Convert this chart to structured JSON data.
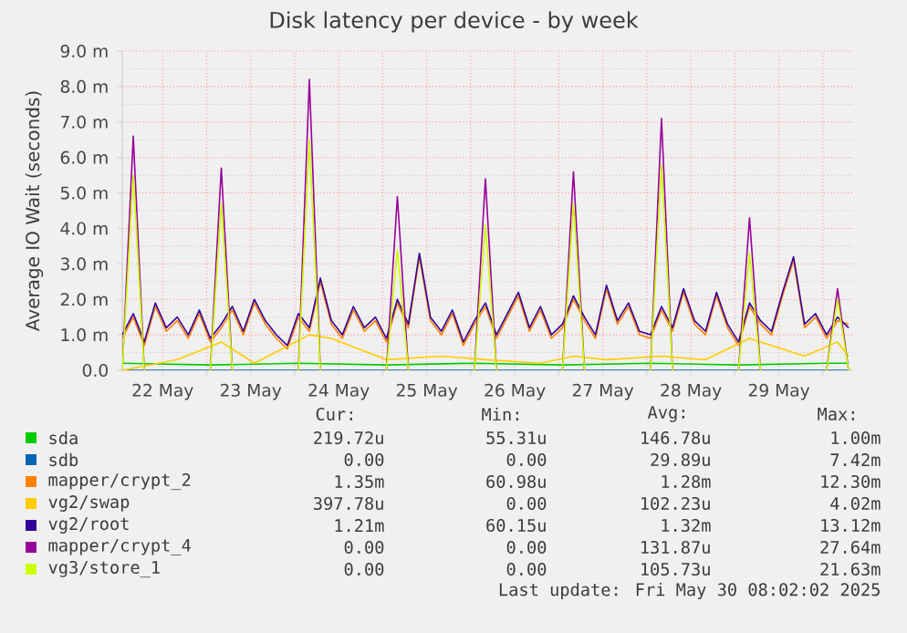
{
  "chart_data": {
    "type": "line",
    "title": "Disk latency per device - by week",
    "ylabel": "Average IO Wait (seconds)",
    "x": [
      "2025-05-22T01:00",
      "2025-05-22T04:00",
      "2025-05-22T07:00",
      "2025-05-22T10:00",
      "2025-05-22T13:00",
      "2025-05-22T16:00",
      "2025-05-22T19:00",
      "2025-05-22T22:00",
      "2025-05-23T01:00",
      "2025-05-23T04:00",
      "2025-05-23T07:00",
      "2025-05-23T10:00",
      "2025-05-23T13:00",
      "2025-05-23T16:00",
      "2025-05-23T19:00",
      "2025-05-23T22:00",
      "2025-05-24T01:00",
      "2025-05-24T04:00",
      "2025-05-24T07:00",
      "2025-05-24T10:00",
      "2025-05-24T13:00",
      "2025-05-24T16:00",
      "2025-05-24T19:00",
      "2025-05-24T22:00",
      "2025-05-25T01:00",
      "2025-05-25T04:00",
      "2025-05-25T07:00",
      "2025-05-25T10:00",
      "2025-05-25T13:00",
      "2025-05-25T16:00",
      "2025-05-25T19:00",
      "2025-05-25T22:00",
      "2025-05-26T01:00",
      "2025-05-26T04:00",
      "2025-05-26T07:00",
      "2025-05-26T10:00",
      "2025-05-26T13:00",
      "2025-05-26T16:00",
      "2025-05-26T19:00",
      "2025-05-26T22:00",
      "2025-05-27T01:00",
      "2025-05-27T04:00",
      "2025-05-27T07:00",
      "2025-05-27T10:00",
      "2025-05-27T13:00",
      "2025-05-27T16:00",
      "2025-05-27T19:00",
      "2025-05-27T22:00",
      "2025-05-28T01:00",
      "2025-05-28T04:00",
      "2025-05-28T07:00",
      "2025-05-28T10:00",
      "2025-05-28T13:00",
      "2025-05-28T16:00",
      "2025-05-28T19:00",
      "2025-05-28T22:00",
      "2025-05-29T01:00",
      "2025-05-29T04:00",
      "2025-05-29T07:00",
      "2025-05-29T10:00",
      "2025-05-29T13:00",
      "2025-05-29T16:00",
      "2025-05-29T19:00",
      "2025-05-29T22:00",
      "2025-05-30T01:00",
      "2025-05-30T04:00",
      "2025-05-30T07:00"
    ],
    "series": [
      {
        "name": "sda",
        "color": "#00cc00",
        "x": [
          "2025-05-22T01:00",
          "2025-05-23T01:00",
          "2025-05-24T01:00",
          "2025-05-25T01:00",
          "2025-05-26T01:00",
          "2025-05-27T01:00",
          "2025-05-28T01:00",
          "2025-05-29T01:00",
          "2025-05-30T01:00",
          "2025-05-30T07:00"
        ],
        "values": [
          0.2,
          0.15,
          0.2,
          0.15,
          0.2,
          0.15,
          0.2,
          0.15,
          0.2,
          0.2
        ]
      },
      {
        "name": "sdb",
        "color": "#0066b3",
        "x": [
          "2025-05-22T01:00",
          "2025-05-24T01:00",
          "2025-05-26T01:00",
          "2025-05-28T01:00",
          "2025-05-30T07:00"
        ],
        "values": [
          0,
          0,
          0,
          0,
          0
        ]
      },
      {
        "name": "mapper/crypt_2",
        "color": "#ff8000",
        "values": [
          0.9,
          1.5,
          0.7,
          1.8,
          1.1,
          1.4,
          0.9,
          1.6,
          0.8,
          1.2,
          1.7,
          1.0,
          1.9,
          1.3,
          0.9,
          0.6,
          1.5,
          1.1,
          2.5,
          1.3,
          0.9,
          1.7,
          1.1,
          1.4,
          0.8,
          1.9,
          1.2,
          3.2,
          1.4,
          1.0,
          1.6,
          0.7,
          1.3,
          1.8,
          0.9,
          1.5,
          2.1,
          1.1,
          1.7,
          0.9,
          1.2,
          2.0,
          1.4,
          0.9,
          2.3,
          1.3,
          1.8,
          1.0,
          0.9,
          1.7,
          1.1,
          2.2,
          1.3,
          1.0,
          2.1,
          1.2,
          0.7,
          1.8,
          1.3,
          1.0,
          2.1,
          3.1,
          1.2,
          1.5,
          0.9,
          1.4,
          1.3
        ]
      },
      {
        "name": "vg2/swap",
        "color": "#ffcc00",
        "x": [
          "2025-05-22T01:00",
          "2025-05-22T16:00",
          "2025-05-23T04:00",
          "2025-05-23T13:00",
          "2025-05-24T04:00",
          "2025-05-24T10:00",
          "2025-05-25T01:00",
          "2025-05-25T16:00",
          "2025-05-26T04:00",
          "2025-05-26T19:00",
          "2025-05-27T04:00",
          "2025-05-27T13:00",
          "2025-05-28T04:00",
          "2025-05-28T16:00",
          "2025-05-29T04:00",
          "2025-05-29T19:00",
          "2025-05-30T04:00",
          "2025-05-30T07:00"
        ],
        "values": [
          0,
          0.3,
          0.8,
          0.2,
          1.0,
          0.9,
          0.3,
          0.4,
          0.3,
          0.2,
          0.4,
          0.3,
          0.4,
          0.3,
          0.9,
          0.4,
          0.8,
          0.4
        ]
      },
      {
        "name": "vg2/root",
        "color": "#330099",
        "values": [
          1.0,
          1.6,
          0.8,
          1.9,
          1.2,
          1.5,
          1.0,
          1.7,
          0.9,
          1.3,
          1.8,
          1.1,
          2.0,
          1.4,
          1.0,
          0.7,
          1.6,
          1.2,
          2.6,
          1.4,
          1.0,
          1.8,
          1.2,
          1.5,
          0.9,
          2.0,
          1.3,
          3.3,
          1.5,
          1.1,
          1.7,
          0.8,
          1.4,
          1.9,
          1.0,
          1.6,
          2.2,
          1.2,
          1.8,
          1.0,
          1.3,
          2.1,
          1.5,
          1.0,
          2.4,
          1.4,
          1.9,
          1.1,
          1.0,
          1.8,
          1.2,
          2.3,
          1.4,
          1.1,
          2.2,
          1.3,
          0.8,
          1.9,
          1.4,
          1.1,
          2.2,
          3.2,
          1.3,
          1.6,
          1.0,
          1.5,
          1.2
        ]
      },
      {
        "name": "mapper/crypt_4",
        "color": "#990099",
        "values": [
          0,
          6.6,
          0,
          null,
          null,
          null,
          null,
          null,
          0,
          5.7,
          0,
          null,
          null,
          null,
          null,
          null,
          0,
          8.2,
          0,
          null,
          null,
          null,
          null,
          null,
          0,
          4.9,
          0,
          null,
          null,
          null,
          null,
          null,
          0,
          5.4,
          0,
          null,
          null,
          null,
          null,
          null,
          0,
          5.6,
          0,
          null,
          null,
          null,
          null,
          null,
          0,
          7.1,
          0,
          null,
          null,
          null,
          null,
          null,
          0,
          4.3,
          0,
          null,
          null,
          null,
          null,
          null,
          0,
          2.3,
          0
        ]
      },
      {
        "name": "vg3/store_1",
        "color": "#ccff00",
        "values": [
          0,
          5.5,
          0,
          null,
          null,
          null,
          null,
          null,
          0,
          4.7,
          0,
          null,
          null,
          null,
          null,
          null,
          0,
          6.5,
          0,
          null,
          null,
          null,
          null,
          null,
          0,
          3.4,
          0,
          null,
          null,
          null,
          null,
          null,
          0,
          4.1,
          0,
          null,
          null,
          null,
          null,
          null,
          0,
          4.7,
          0,
          null,
          null,
          null,
          null,
          null,
          0,
          5.8,
          0,
          null,
          null,
          null,
          null,
          null,
          0,
          3.3,
          0,
          null,
          null,
          null,
          null,
          null,
          0,
          2.0,
          0
        ]
      }
    ],
    "xlim": [
      "2025-05-22T01:00",
      "2025-05-30T08:00"
    ],
    "xticks": [
      {
        "value": "2025-05-22T12:00",
        "label": "22 May"
      },
      {
        "value": "2025-05-23T00:00",
        "label": null
      },
      {
        "value": "2025-05-23T12:00",
        "label": "23 May"
      },
      {
        "value": "2025-05-24T00:00",
        "label": null
      },
      {
        "value": "2025-05-24T12:00",
        "label": "24 May"
      },
      {
        "value": "2025-05-25T00:00",
        "label": null
      },
      {
        "value": "2025-05-25T12:00",
        "label": "25 May"
      },
      {
        "value": "2025-05-26T00:00",
        "label": null
      },
      {
        "value": "2025-05-26T12:00",
        "label": "26 May"
      },
      {
        "value": "2025-05-27T00:00",
        "label": null
      },
      {
        "value": "2025-05-27T12:00",
        "label": "27 May"
      },
      {
        "value": "2025-05-28T00:00",
        "label": null
      },
      {
        "value": "2025-05-28T12:00",
        "label": "28 May"
      },
      {
        "value": "2025-05-29T00:00",
        "label": null
      },
      {
        "value": "2025-05-29T12:00",
        "label": "29 May"
      },
      {
        "value": "2025-05-30T00:00",
        "label": null
      }
    ],
    "ylim": [
      0,
      9
    ],
    "yticks": [
      {
        "value": 0,
        "label": "0.0"
      },
      {
        "value": 1,
        "label": "1.0 m"
      },
      {
        "value": 2,
        "label": "2.0 m"
      },
      {
        "value": 3,
        "label": "3.0 m"
      },
      {
        "value": 4,
        "label": "4.0 m"
      },
      {
        "value": 5,
        "label": "5.0 m"
      },
      {
        "value": 6,
        "label": "6.0 m"
      },
      {
        "value": 7,
        "label": "7.0 m"
      },
      {
        "value": 8,
        "label": "8.0 m"
      },
      {
        "value": 9,
        "label": "9.0 m"
      }
    ],
    "grid": true,
    "legend": "bottom",
    "annotations": [
      "Cur:",
      "Min:",
      "Avg:",
      "Max:",
      "219.72u",
      "55.31u",
      "146.78u",
      "1.00m",
      "0.00",
      "0.00",
      "29.89u",
      "7.42m",
      "1.35m",
      "60.98u",
      "1.28m",
      "12.30m",
      "397.78u",
      "0.00",
      "102.23u",
      "4.02m",
      "1.21m",
      "60.15u",
      "1.32m",
      "13.12m",
      "0.00",
      "0.00",
      "131.87u",
      "27.64m",
      "0.00",
      "0.00",
      "105.73u",
      "21.63m",
      "Last update: Fri May 30 08:02:02 2025"
    ]
  }
}
